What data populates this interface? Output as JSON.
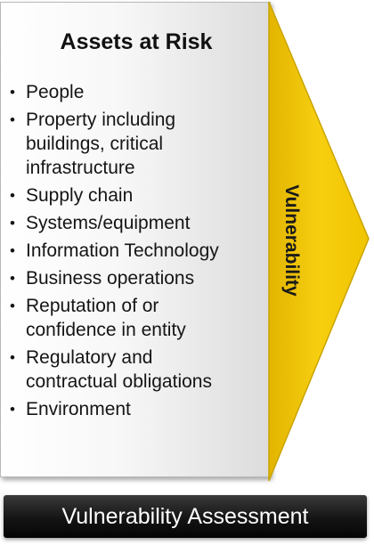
{
  "assets": {
    "title": "Assets at Risk",
    "bullet": "•",
    "items": [
      "People",
      "Property including\nbuildings, critical\ninfrastructure",
      "Supply chain",
      "Systems/equipment",
      "Information Technology",
      "Business operations",
      "Reputation of or\nconfidence in entity",
      "Regulatory and\ncontractual obligations",
      "Environment"
    ]
  },
  "arrow": {
    "label": "Vulnerability",
    "color": "#f5c800"
  },
  "footer": {
    "label": "Vulnerability Assessment"
  }
}
